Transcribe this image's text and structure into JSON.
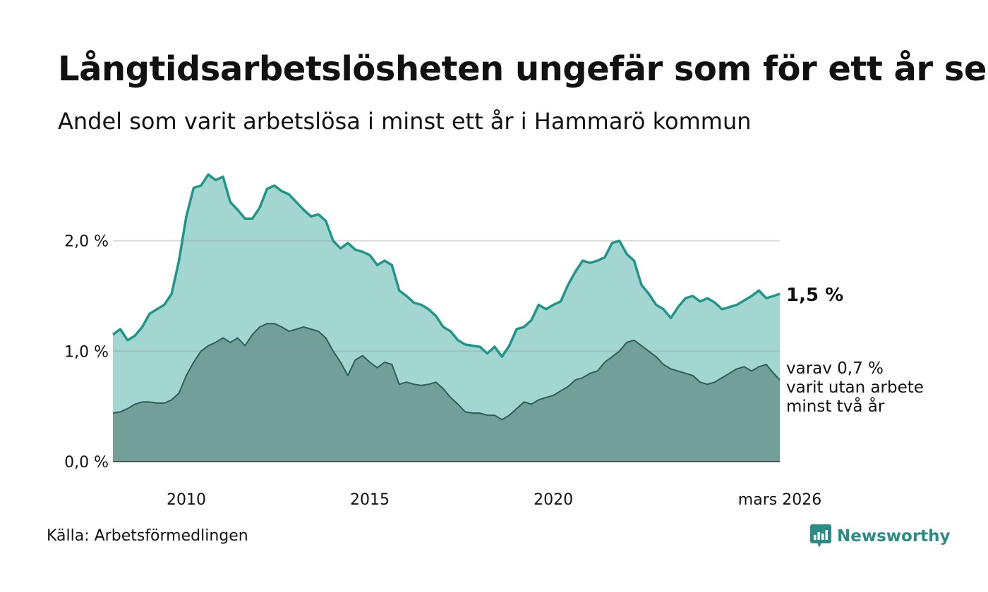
{
  "chart_data": {
    "type": "area",
    "title": "Långtidsarbetslösheten ungefär som för ett år sen",
    "subtitle": "Andel som varit arbetslösa i minst ett år i Hammarö kommun",
    "xlabel": "",
    "ylabel": "",
    "ylim": [
      0,
      3.0
    ],
    "x_range": [
      2008.0,
      2026.17
    ],
    "y_ticks": [
      0,
      1,
      2
    ],
    "y_tick_labels": [
      "0,0 %",
      "1,0 %",
      "2,0 %"
    ],
    "x_ticks": [
      2010,
      2015,
      2020,
      2026.17
    ],
    "x_tick_labels": [
      "2010",
      "2015",
      "2020",
      "mars 2026"
    ],
    "grid": true,
    "series": [
      {
        "name": "minst ett år",
        "color": "#1f9688",
        "fill": "#a3d6d0",
        "end_label": "1,5 %",
        "x": [
          2008.0,
          2008.2,
          2008.4,
          2008.6,
          2008.8,
          2009.0,
          2009.2,
          2009.4,
          2009.6,
          2009.8,
          2010.0,
          2010.2,
          2010.4,
          2010.6,
          2010.8,
          2011.0,
          2011.2,
          2011.4,
          2011.6,
          2011.8,
          2012.0,
          2012.2,
          2012.4,
          2012.6,
          2012.8,
          2013.0,
          2013.2,
          2013.4,
          2013.6,
          2013.8,
          2014.0,
          2014.2,
          2014.4,
          2014.6,
          2014.8,
          2015.0,
          2015.2,
          2015.4,
          2015.6,
          2015.8,
          2016.0,
          2016.2,
          2016.4,
          2016.6,
          2016.8,
          2017.0,
          2017.2,
          2017.4,
          2017.6,
          2017.8,
          2018.0,
          2018.2,
          2018.4,
          2018.6,
          2018.8,
          2019.0,
          2019.2,
          2019.4,
          2019.6,
          2019.8,
          2020.0,
          2020.2,
          2020.4,
          2020.6,
          2020.8,
          2021.0,
          2021.2,
          2021.4,
          2021.6,
          2021.8,
          2022.0,
          2022.2,
          2022.4,
          2022.6,
          2022.8,
          2023.0,
          2023.2,
          2023.4,
          2023.6,
          2023.8,
          2024.0,
          2024.2,
          2024.4,
          2024.6,
          2024.8,
          2025.0,
          2025.2,
          2025.4,
          2025.6,
          2025.8,
          2026.0,
          2026.17
        ],
        "values": [
          1.15,
          1.2,
          1.1,
          1.14,
          1.22,
          1.34,
          1.38,
          1.42,
          1.52,
          1.82,
          2.22,
          2.48,
          2.5,
          2.6,
          2.55,
          2.58,
          2.35,
          2.28,
          2.2,
          2.2,
          2.3,
          2.47,
          2.5,
          2.45,
          2.42,
          2.35,
          2.28,
          2.22,
          2.24,
          2.18,
          2.0,
          1.93,
          1.98,
          1.92,
          1.9,
          1.87,
          1.78,
          1.82,
          1.78,
          1.55,
          1.5,
          1.44,
          1.42,
          1.38,
          1.32,
          1.22,
          1.18,
          1.1,
          1.06,
          1.05,
          1.04,
          0.98,
          1.04,
          0.95,
          1.05,
          1.2,
          1.22,
          1.28,
          1.42,
          1.38,
          1.42,
          1.45,
          1.6,
          1.72,
          1.82,
          1.8,
          1.82,
          1.85,
          1.98,
          2.0,
          1.88,
          1.82,
          1.6,
          1.52,
          1.42,
          1.38,
          1.3,
          1.4,
          1.48,
          1.5,
          1.45,
          1.48,
          1.44,
          1.38,
          1.4,
          1.42,
          1.46,
          1.5,
          1.55,
          1.48,
          1.5,
          1.52
        ]
      },
      {
        "name": "minst två år",
        "color": "#2f5e58",
        "fill": "#729f98",
        "end_label_lines": [
          "varav 0,7 %",
          "varit utan arbete",
          "minst två år"
        ],
        "x": [
          2008.0,
          2008.2,
          2008.4,
          2008.6,
          2008.8,
          2009.0,
          2009.2,
          2009.4,
          2009.6,
          2009.8,
          2010.0,
          2010.2,
          2010.4,
          2010.6,
          2010.8,
          2011.0,
          2011.2,
          2011.4,
          2011.6,
          2011.8,
          2012.0,
          2012.2,
          2012.4,
          2012.6,
          2012.8,
          2013.0,
          2013.2,
          2013.4,
          2013.6,
          2013.8,
          2014.0,
          2014.2,
          2014.4,
          2014.6,
          2014.8,
          2015.0,
          2015.2,
          2015.4,
          2015.6,
          2015.8,
          2016.0,
          2016.2,
          2016.4,
          2016.6,
          2016.8,
          2017.0,
          2017.2,
          2017.4,
          2017.6,
          2017.8,
          2018.0,
          2018.2,
          2018.4,
          2018.6,
          2018.8,
          2019.0,
          2019.2,
          2019.4,
          2019.6,
          2019.8,
          2020.0,
          2020.2,
          2020.4,
          2020.6,
          2020.8,
          2021.0,
          2021.2,
          2021.4,
          2021.6,
          2021.8,
          2022.0,
          2022.2,
          2022.4,
          2022.6,
          2022.8,
          2023.0,
          2023.2,
          2023.4,
          2023.6,
          2023.8,
          2024.0,
          2024.2,
          2024.4,
          2024.6,
          2024.8,
          2025.0,
          2025.2,
          2025.4,
          2025.6,
          2025.8,
          2026.0,
          2026.17
        ],
        "values": [
          0.44,
          0.45,
          0.48,
          0.52,
          0.54,
          0.54,
          0.53,
          0.53,
          0.56,
          0.62,
          0.78,
          0.9,
          1.0,
          1.05,
          1.08,
          1.12,
          1.08,
          1.12,
          1.05,
          1.15,
          1.22,
          1.25,
          1.25,
          1.22,
          1.18,
          1.2,
          1.22,
          1.2,
          1.18,
          1.12,
          1.0,
          0.9,
          0.78,
          0.92,
          0.96,
          0.9,
          0.85,
          0.9,
          0.88,
          0.7,
          0.72,
          0.7,
          0.69,
          0.7,
          0.72,
          0.66,
          0.58,
          0.52,
          0.45,
          0.44,
          0.44,
          0.42,
          0.42,
          0.38,
          0.42,
          0.48,
          0.54,
          0.52,
          0.56,
          0.58,
          0.6,
          0.64,
          0.68,
          0.74,
          0.76,
          0.8,
          0.82,
          0.9,
          0.95,
          1.0,
          1.08,
          1.1,
          1.05,
          1.0,
          0.95,
          0.88,
          0.84,
          0.82,
          0.8,
          0.78,
          0.72,
          0.7,
          0.72,
          0.76,
          0.8,
          0.84,
          0.86,
          0.82,
          0.86,
          0.88,
          0.8,
          0.74
        ]
      }
    ]
  },
  "source": "Källa: Arbetsförmedlingen",
  "brand": {
    "name": "Newsworthy",
    "color": "#2b8c85",
    "icon": "newsworthy-logo-icon"
  }
}
